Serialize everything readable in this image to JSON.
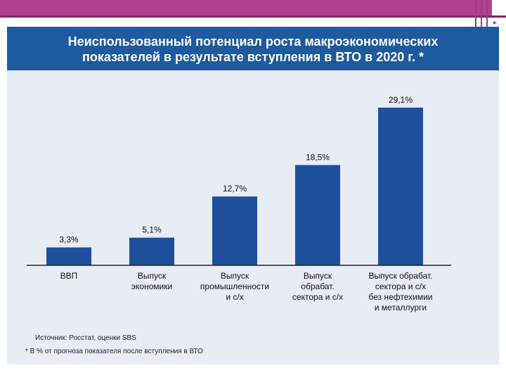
{
  "slide": {
    "title_line1": "Неиспользованный потенциал роста макроэкономических",
    "title_line2": "показателей в результате вступления  в ВТО в 2020 г. *",
    "source": "Источник: Росстат, оценки SBS",
    "footnote": "* В % от прогноза показателя после вступления в ВТО",
    "corner_marker": "▸"
  },
  "colors": {
    "bar": "#1d4f9c",
    "banner": "#1d5aa0",
    "accent": "#b0418f"
  },
  "chart_data": {
    "type": "bar",
    "title": "Неиспользованный потенциал роста макроэкономических показателей в результате вступления  в ВТО в 2020 г. *",
    "categories": [
      [
        "ВВП"
      ],
      [
        "Выпуск",
        "экономики"
      ],
      [
        "Выпуск",
        "промышленности",
        "и с/х"
      ],
      [
        "Выпуск",
        "обрабат.",
        "сектора  и с/х"
      ],
      [
        "Выпуск обрабат.",
        "сектора и с/х",
        "без нефтехимии",
        "и металлурги"
      ]
    ],
    "values": [
      3.3,
      5.1,
      12.7,
      18.5,
      29.1
    ],
    "labels": [
      "3,3%",
      "5,1%",
      "12,7%",
      "18,5%",
      "29,1%"
    ],
    "unit": "%",
    "ylim": [
      0,
      30
    ],
    "grid": false,
    "legend": "none"
  }
}
